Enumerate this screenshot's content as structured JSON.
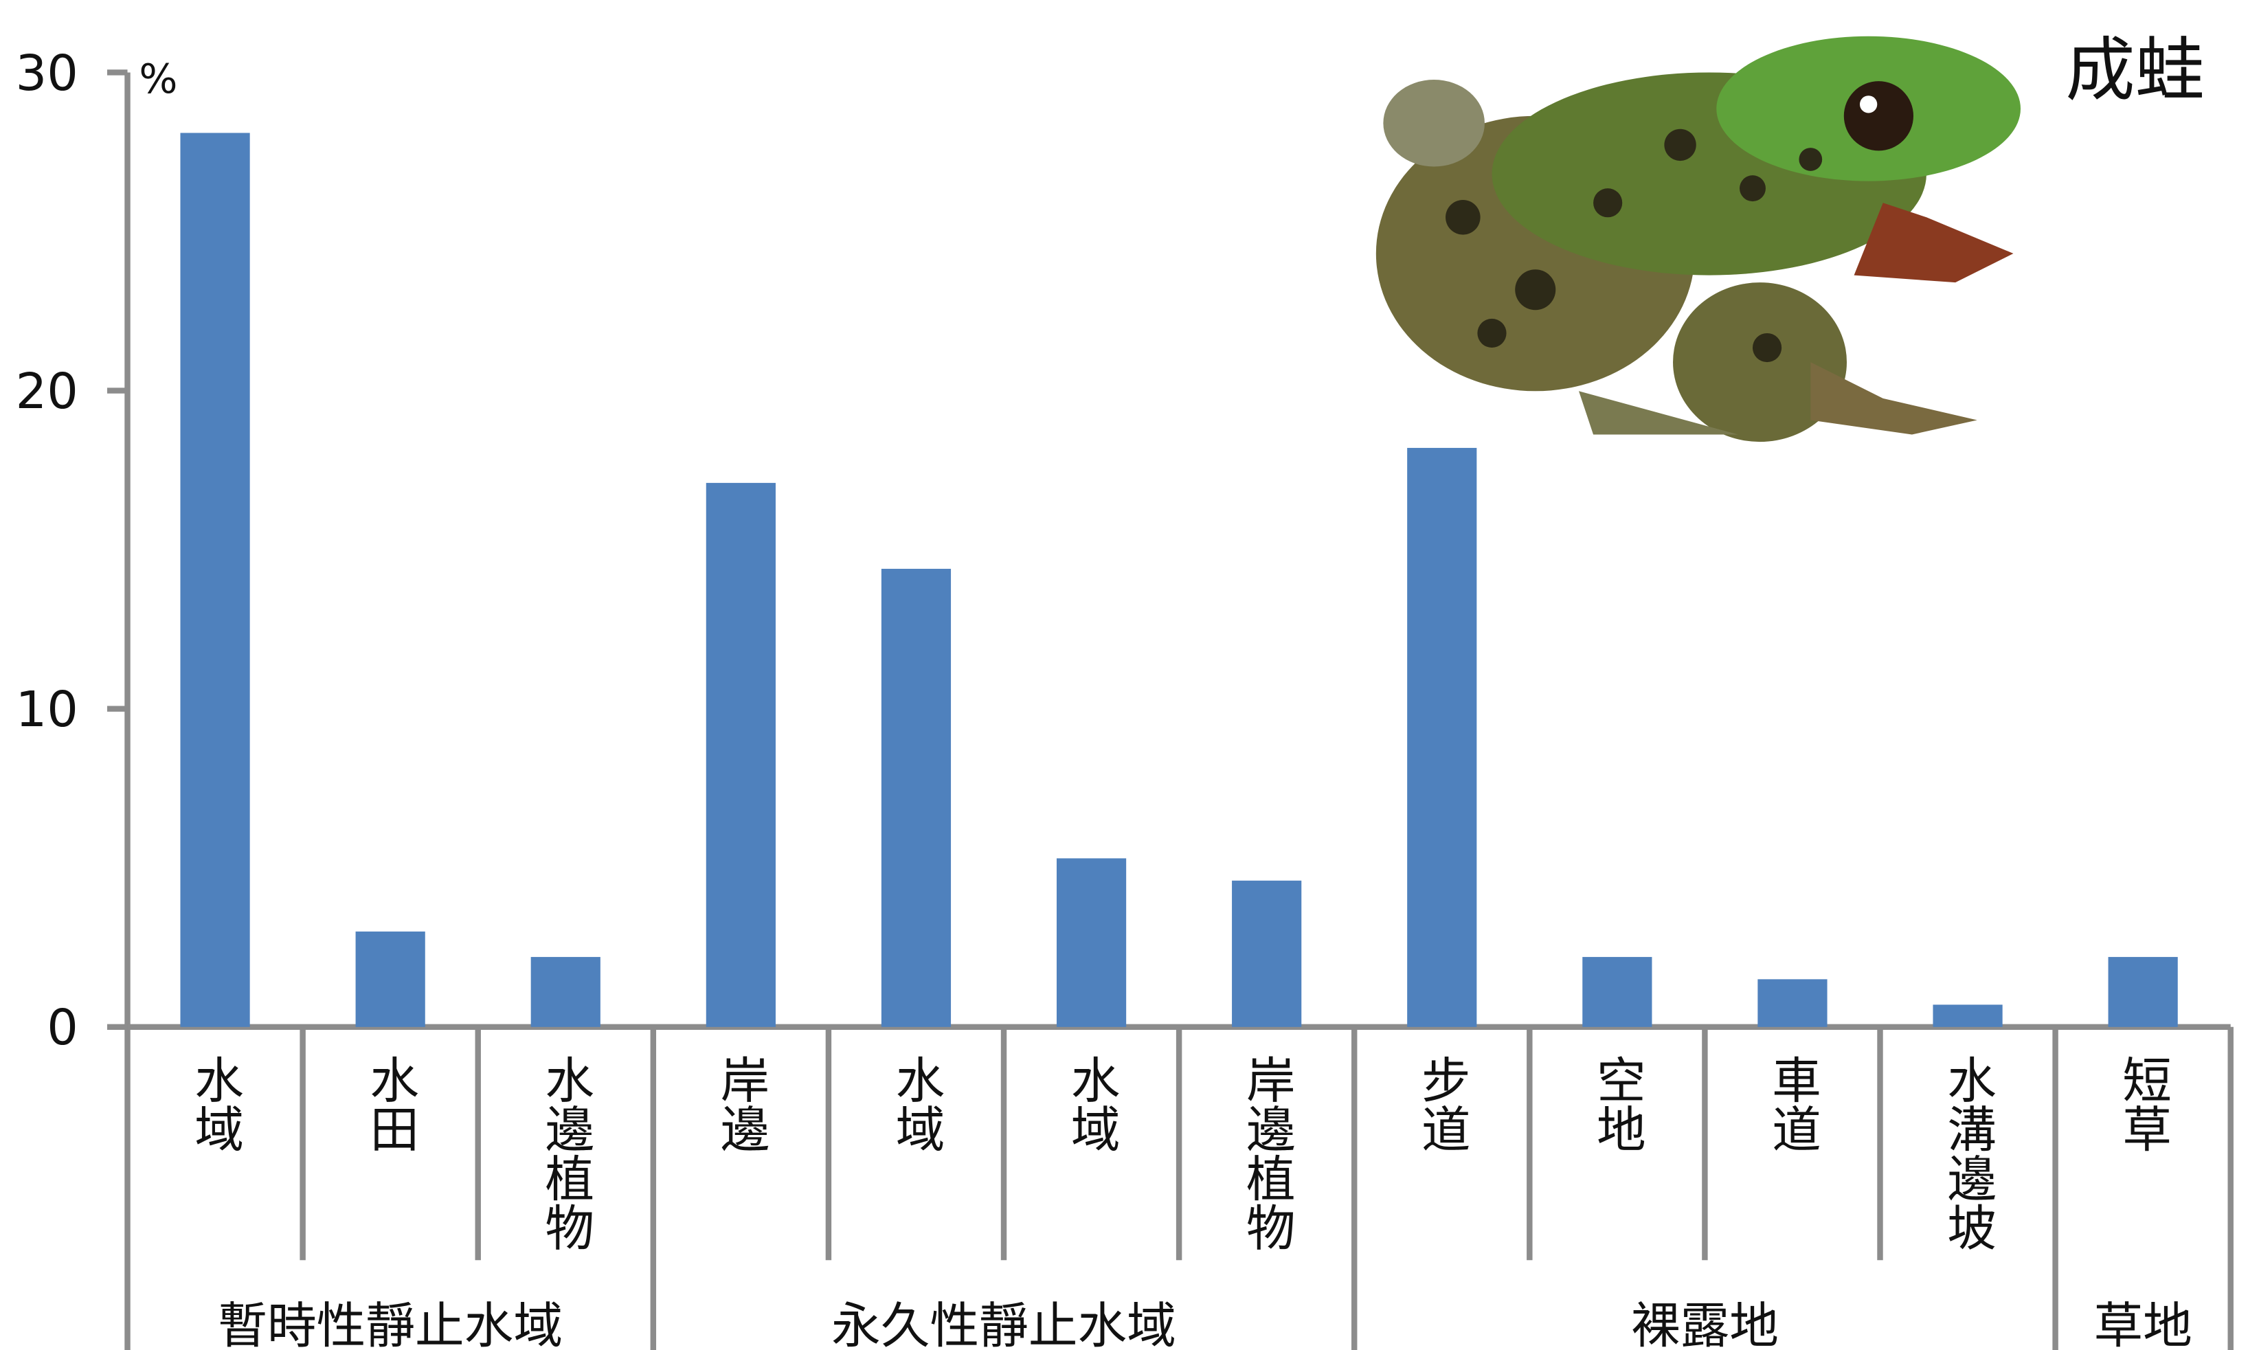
{
  "chart_data": {
    "type": "bar",
    "title": "成蛙",
    "y_label": "%",
    "color": "#4f81bd",
    "ylim": [
      0,
      30
    ],
    "yticks": [
      0,
      10,
      20,
      30
    ],
    "groups": [
      {
        "label": "暫時性靜止水域",
        "categories": [
          "水域",
          "水田",
          "水邊植物"
        ],
        "values": [
          28.1,
          3.0,
          2.2
        ]
      },
      {
        "label": "永久性靜止水域",
        "categories": [
          "岸邊",
          "水域",
          "水域",
          "岸邊植物"
        ],
        "values": [
          17.1,
          14.4,
          5.3,
          4.6
        ]
      },
      {
        "label": "裸露地",
        "categories": [
          "步道",
          "空地",
          "車道",
          "水溝邊坡"
        ],
        "values": [
          18.2,
          2.2,
          1.5,
          0.7
        ]
      },
      {
        "label": "草地",
        "categories": [
          "短草"
        ],
        "values": [
          2.2
        ]
      }
    ]
  }
}
